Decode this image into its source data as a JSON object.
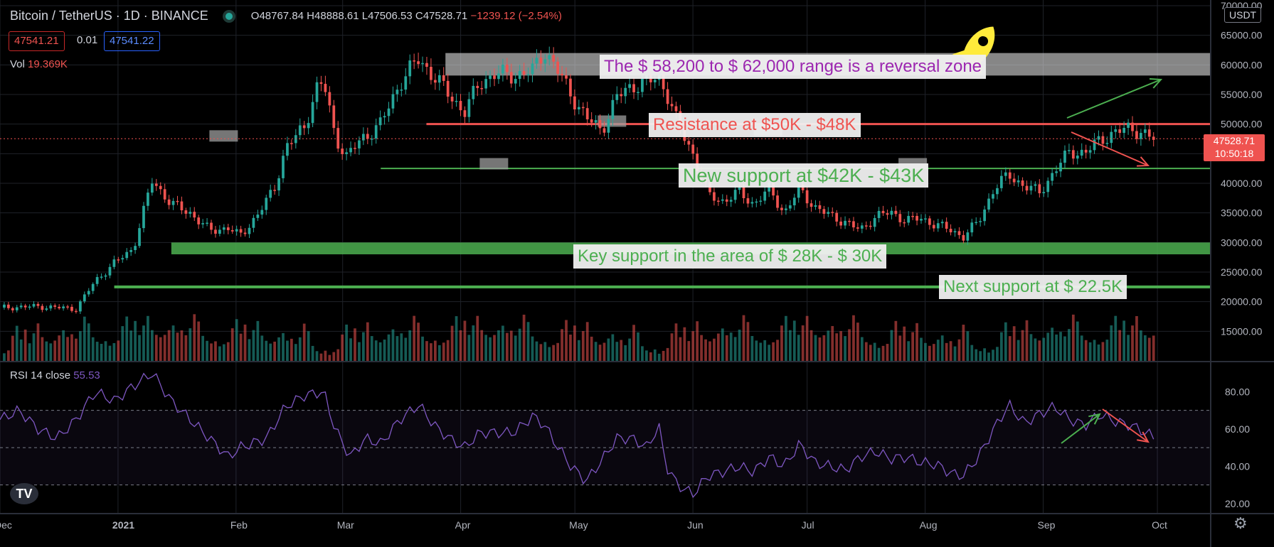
{
  "header": {
    "symbol": "Bitcoin / TetherUS · 1D · BINANCE",
    "o": "48767.84",
    "h": "48888.61",
    "l": "47506.53",
    "c": "47528.71",
    "change": "−1239.12 (−2.54%)",
    "sell_price": "47541.21",
    "spread": "0.01",
    "buy_price": "47541.22",
    "vol_label": "Vol",
    "vol_value": "19.369K",
    "rsi_label": "RSI 14 close",
    "rsi_value": "55.53",
    "currency": "USDT",
    "last_price": "47528.71",
    "countdown": "10:50:18"
  },
  "colors": {
    "bull": "#26a69a",
    "bear": "#ef5350",
    "rsi": "#7e57c2",
    "support": "#4caf50"
  },
  "chart_data": [
    {
      "type": "candlestick",
      "title": "Bitcoin / TetherUS",
      "ylim": [
        10000,
        70000
      ],
      "y_ticks": [
        15000,
        20000,
        25000,
        30000,
        35000,
        40000,
        45000,
        50000,
        55000,
        60000,
        65000,
        70000
      ],
      "x_ticks": [
        "Dec",
        "2021",
        "Feb",
        "Mar",
        "Apr",
        "May",
        "Jun",
        "Jul",
        "Aug",
        "Sep",
        "Oct"
      ],
      "x_range": [
        "2020-12-01",
        "2021-10-15"
      ],
      "series": [
        {
          "values": [
            [
              0,
              19000
            ],
            [
              10,
              19200
            ],
            [
              20,
              18800
            ],
            [
              25,
              23500
            ],
            [
              30,
              26500
            ],
            [
              35,
              29000
            ],
            [
              40,
              40500
            ],
            [
              45,
              36500
            ],
            [
              50,
              35000
            ],
            [
              55,
              32000
            ],
            [
              60,
              32500
            ],
            [
              63,
              31000
            ],
            [
              68,
              35000
            ],
            [
              72,
              39000
            ],
            [
              75,
              46000
            ],
            [
              80,
              49500
            ],
            [
              83,
              56000
            ],
            [
              85,
              57000
            ],
            [
              88,
              48000
            ],
            [
              91,
              44500
            ],
            [
              95,
              47500
            ],
            [
              100,
              50000
            ],
            [
              105,
              57000
            ],
            [
              110,
              61000
            ],
            [
              114,
              58000
            ],
            [
              118,
              55000
            ],
            [
              122,
              52000
            ],
            [
              126,
              57000
            ],
            [
              130,
              58500
            ],
            [
              135,
              58200
            ],
            [
              140,
              59000
            ],
            [
              143,
              62500
            ],
            [
              146,
              59500
            ],
            [
              150,
              55000
            ],
            [
              154,
              51000
            ],
            [
              158,
              49000
            ],
            [
              162,
              54500
            ],
            [
              166,
              56500
            ],
            [
              170,
              57000
            ],
            [
              173,
              58000
            ],
            [
              175,
              55500
            ],
            [
              178,
              50000
            ],
            [
              182,
              45000
            ],
            [
              186,
              38000
            ],
            [
              190,
              37000
            ],
            [
              194,
              38500
            ],
            [
              198,
              36500
            ],
            [
              202,
              39000
            ],
            [
              206,
              35000
            ],
            [
              210,
              39000
            ],
            [
              214,
              36000
            ],
            [
              218,
              34500
            ],
            [
              222,
              33500
            ],
            [
              226,
              32000
            ],
            [
              230,
              34500
            ],
            [
              234,
              35000
            ],
            [
              238,
              33800
            ],
            [
              242,
              34000
            ],
            [
              246,
              33000
            ],
            [
              250,
              32000
            ],
            [
              253,
              31000
            ],
            [
              257,
              33500
            ],
            [
              261,
              39000
            ],
            [
              265,
              41500
            ],
            [
              269,
              39500
            ],
            [
              273,
              38500
            ],
            [
              277,
              42000
            ],
            [
              281,
              45500
            ],
            [
              285,
              45000
            ],
            [
              289,
              47500
            ],
            [
              293,
              48500
            ],
            [
              297,
              49500
            ],
            [
              301,
              48000
            ],
            [
              303,
              47528
            ]
          ]
        }
      ],
      "volume_series": [
        12000,
        12500,
        13000,
        16000,
        18000,
        15000,
        17000,
        14000,
        16000,
        18000,
        15000,
        14000,
        13500,
        14000,
        15000,
        16000,
        14500,
        15000,
        14000,
        15500,
        18500,
        17000,
        14000,
        13000,
        12500,
        13000
      ]
    },
    {
      "type": "line",
      "title": "RSI 14 close",
      "ylim": [
        15,
        95
      ],
      "y_ticks": [
        20,
        40,
        60,
        80
      ],
      "bands": [
        30,
        50,
        70
      ],
      "series": [
        {
          "name": "RSI",
          "values": [
            [
              0,
              65
            ],
            [
              5,
              70
            ],
            [
              10,
              60
            ],
            [
              15,
              55
            ],
            [
              20,
              65
            ],
            [
              25,
              80
            ],
            [
              30,
              75
            ],
            [
              35,
              83
            ],
            [
              40,
              90
            ],
            [
              45,
              75
            ],
            [
              50,
              65
            ],
            [
              55,
              55
            ],
            [
              60,
              45
            ],
            [
              63,
              50
            ],
            [
              70,
              55
            ],
            [
              75,
              72
            ],
            [
              80,
              78
            ],
            [
              85,
              80
            ],
            [
              88,
              60
            ],
            [
              92,
              45
            ],
            [
              96,
              55
            ],
            [
              100,
              52
            ],
            [
              105,
              65
            ],
            [
              110,
              73
            ],
            [
              114,
              62
            ],
            [
              118,
              55
            ],
            [
              122,
              50
            ],
            [
              126,
              58
            ],
            [
              130,
              58
            ],
            [
              135,
              58
            ],
            [
              140,
              67
            ],
            [
              143,
              62
            ],
            [
              146,
              52
            ],
            [
              150,
              40
            ],
            [
              154,
              32
            ],
            [
              158,
              43
            ],
            [
              162,
              55
            ],
            [
              166,
              55
            ],
            [
              170,
              50
            ],
            [
              173,
              62
            ],
            [
              175,
              40
            ],
            [
              178,
              30
            ],
            [
              182,
              25
            ],
            [
              186,
              35
            ],
            [
              190,
              37
            ],
            [
              194,
              40
            ],
            [
              198,
              37
            ],
            [
              202,
              45
            ],
            [
              206,
              40
            ],
            [
              210,
              52
            ],
            [
              214,
              42
            ],
            [
              218,
              40
            ],
            [
              222,
              38
            ],
            [
              226,
              45
            ],
            [
              230,
              48
            ],
            [
              234,
              44
            ],
            [
              238,
              45
            ],
            [
              242,
              42
            ],
            [
              246,
              41
            ],
            [
              250,
              36
            ],
            [
              253,
              35
            ],
            [
              257,
              45
            ],
            [
              261,
              60
            ],
            [
              265,
              73
            ],
            [
              269,
              63
            ],
            [
              273,
              68
            ],
            [
              277,
              72
            ],
            [
              281,
              65
            ],
            [
              285,
              62
            ],
            [
              289,
              68
            ],
            [
              293,
              64
            ],
            [
              297,
              62
            ],
            [
              301,
              58
            ],
            [
              303,
              55.53
            ]
          ]
        }
      ]
    }
  ],
  "annotations": {
    "reversal": "The $ 58,200 to $ 62,000 range is a reversal zone",
    "resistance": "Resistance at $50K - $48K",
    "new_support": "New support at $42K - $43K",
    "key_support": "Key support in the area of $ 28K - $ 30K",
    "next_support": "Next support at $ 22.5K"
  },
  "levels": {
    "reversal_zone": [
      58200,
      62000
    ],
    "resistance": 50000,
    "new_support": 42500,
    "key_support": [
      28000,
      30000
    ],
    "next_support": 22500
  },
  "icons": {
    "rocket": "rocket-icon",
    "logo": "tradingview-logo",
    "settings": "gear-icon"
  }
}
